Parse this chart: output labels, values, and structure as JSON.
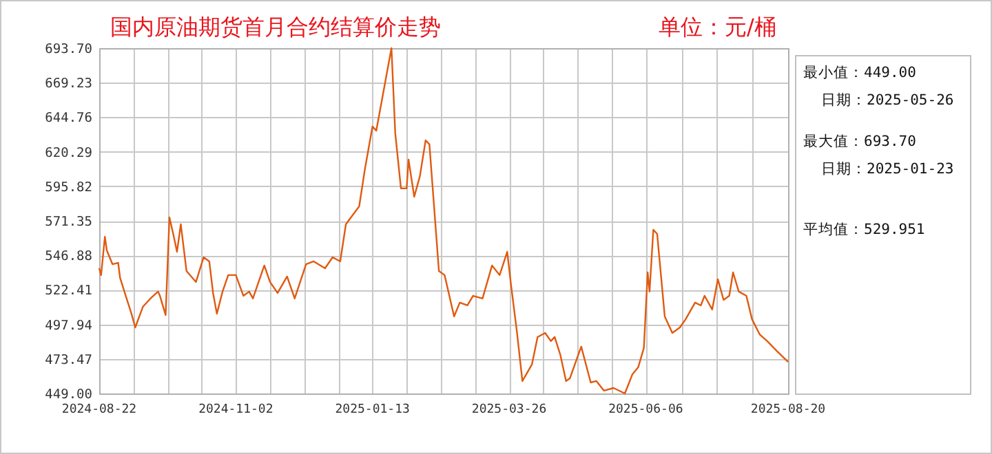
{
  "chart_data": {
    "type": "line",
    "title": "国内原油期货首月合约结算价走势",
    "subtitle": "单位：元/桶",
    "annotations": [
      "最小值：449.00",
      "日期：2025-05-26",
      "最大值：693.70",
      "日期：2025-01-23",
      "平均值：529.951"
    ],
    "x": [
      "2024-08-22",
      "2024-08-23",
      "2024-08-25",
      "2024-08-26",
      "2024-08-29",
      "2024-09-01",
      "2024-09-02",
      "2024-09-05",
      "2024-09-08",
      "2024-09-10",
      "2024-09-14",
      "2024-09-18",
      "2024-09-22",
      "2024-09-23",
      "2024-09-26",
      "2024-09-28",
      "2024-09-30",
      "2024-10-02",
      "2024-10-04",
      "2024-10-07",
      "2024-10-12",
      "2024-10-16",
      "2024-10-19",
      "2024-10-21",
      "2024-10-23",
      "2024-10-26",
      "2024-10-29",
      "2024-11-02",
      "2024-11-06",
      "2024-11-09",
      "2024-11-11",
      "2024-11-17",
      "2024-11-20",
      "2024-11-24",
      "2024-11-29",
      "2024-12-03",
      "2024-12-09",
      "2024-12-13",
      "2024-12-19",
      "2024-12-23",
      "2024-12-27",
      "2024-12-30",
      "2025-01-06",
      "2025-01-09",
      "2025-01-13",
      "2025-01-15",
      "2025-01-23",
      "2025-01-25",
      "2025-01-28",
      "2025-01-31",
      "2025-02-01",
      "2025-02-04",
      "2025-02-07",
      "2025-02-10",
      "2025-02-12",
      "2025-02-17",
      "2025-02-20",
      "2025-02-25",
      "2025-02-28",
      "2025-03-04",
      "2025-03-07",
      "2025-03-12",
      "2025-03-17",
      "2025-03-21",
      "2025-03-25",
      "2025-03-27",
      "2025-03-30",
      "2025-04-02",
      "2025-04-07",
      "2025-04-10",
      "2025-04-14",
      "2025-04-17",
      "2025-04-19",
      "2025-04-22",
      "2025-04-25",
      "2025-04-27",
      "2025-05-03",
      "2025-05-08",
      "2025-05-11",
      "2025-05-15",
      "2025-05-20",
      "2025-05-26",
      "2025-05-30",
      "2025-06-02",
      "2025-06-05",
      "2025-06-07",
      "2025-06-08",
      "2025-06-10",
      "2025-06-12",
      "2025-06-16",
      "2025-06-20",
      "2025-06-24",
      "2025-06-27",
      "2025-07-02",
      "2025-07-05",
      "2025-07-07",
      "2025-07-11",
      "2025-07-14",
      "2025-07-17",
      "2025-07-20",
      "2025-07-22",
      "2025-07-25",
      "2025-07-29",
      "2025-08-01",
      "2025-08-05",
      "2025-08-09",
      "2025-08-14",
      "2025-08-20"
    ],
    "series": [
      {
        "color": "#e05a10",
        "values": [
          537.7,
          532.9,
          560.1,
          550.4,
          540.6,
          541.6,
          530.9,
          518.2,
          505.5,
          495.8,
          510.4,
          516.3,
          521.2,
          518.2,
          504.6,
          573.8,
          562.1,
          549.4,
          568.9,
          535.8,
          528.0,
          545.5,
          542.6,
          520.2,
          505.5,
          521.2,
          532.9,
          532.9,
          518.2,
          521.2,
          516.3,
          539.7,
          528.0,
          520.2,
          531.9,
          516.3,
          540.6,
          542.6,
          537.7,
          545.5,
          542.6,
          568.9,
          581.6,
          607.9,
          638.2,
          635.2,
          693.7,
          633.3,
          594.3,
          594.3,
          614.8,
          588.4,
          603.1,
          628.4,
          625.5,
          535.8,
          532.9,
          503.6,
          513.4,
          511.4,
          518.2,
          516.3,
          539.7,
          532.9,
          549.4,
          526.0,
          493.9,
          457.8,
          469.5,
          489.0,
          491.9,
          486.1,
          489.0,
          476.3,
          457.8,
          459.7,
          482.2,
          456.8,
          457.8,
          451.0,
          452.9,
          449.0,
          462.7,
          467.5,
          481.2,
          534.8,
          521.2,
          565.0,
          562.1,
          503.6,
          491.9,
          495.8,
          501.6,
          513.4,
          511.4,
          518.2,
          508.5,
          529.9,
          515.3,
          518.2,
          534.8,
          521.2,
          518.2,
          501.6,
          490.9,
          486.1,
          479.2,
          471.4
        ]
      }
    ],
    "xlim": [
      "2024-08-22",
      "2025-08-20"
    ],
    "xticks": [
      "2024-08-22",
      "2024-11-02",
      "2025-01-13",
      "2025-03-26",
      "2025-06-06",
      "2025-08-20"
    ],
    "ylim": [
      449,
      693.7
    ],
    "yticks": [
      {
        "value": 449,
        "label": "449.00"
      },
      {
        "value": 473.47,
        "label": "473.47"
      },
      {
        "value": 497.94,
        "label": "497.94"
      },
      {
        "value": 522.41,
        "label": "522.41"
      },
      {
        "value": 546.88,
        "label": "546.88"
      },
      {
        "value": 571.35,
        "label": "571.35"
      },
      {
        "value": 595.82,
        "label": "595.82"
      },
      {
        "value": 620.29,
        "label": "620.29"
      },
      {
        "value": 644.76,
        "label": "644.76"
      },
      {
        "value": 669.23,
        "label": "669.23"
      },
      {
        "value": 693.7,
        "label": "693.70"
      }
    ],
    "grid": true,
    "marker": "none",
    "line_style": "solid"
  }
}
